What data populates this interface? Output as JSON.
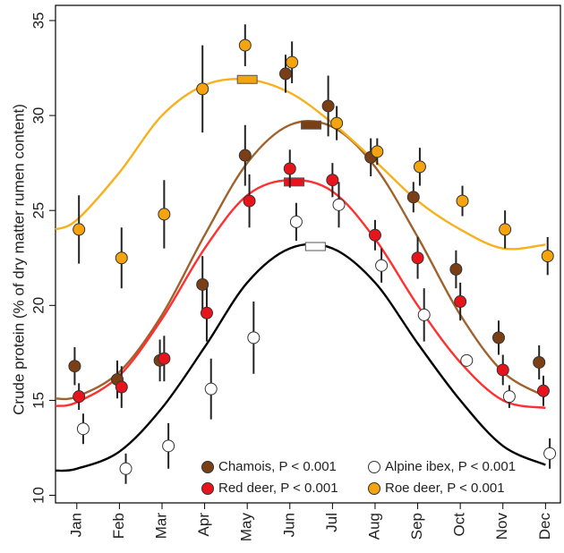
{
  "chart_data": {
    "type": "scatter",
    "ylabel": "Crude protein (% of dry matter rumen content)",
    "xlim": [
      0.5,
      12.35
    ],
    "ylim": [
      9.6,
      35.8
    ],
    "xticks": [
      {
        "value": 1,
        "label": "Jan"
      },
      {
        "value": 2,
        "label": "Feb"
      },
      {
        "value": 3,
        "label": "Mar"
      },
      {
        "value": 4,
        "label": "Apr"
      },
      {
        "value": 5,
        "label": "May"
      },
      {
        "value": 6,
        "label": "Jun"
      },
      {
        "value": 7,
        "label": "Jul"
      },
      {
        "value": 8,
        "label": "Aug"
      },
      {
        "value": 9,
        "label": "Sep"
      },
      {
        "value": 10,
        "label": "Oct"
      },
      {
        "value": 11,
        "label": "Nov"
      },
      {
        "value": 12,
        "label": "Dec"
      }
    ],
    "yticks": [
      10,
      15,
      20,
      25,
      30,
      35
    ],
    "curve_x": [
      0.5,
      1,
      2,
      3,
      4,
      5,
      6,
      7,
      8,
      9,
      10,
      11,
      12
    ],
    "series": [
      {
        "name": "Chamois, P < 0.001",
        "color": "#7b3f16",
        "line_color": "#a0622d",
        "x": [
          0.95,
          1.95,
          2.95,
          3.95,
          4.95,
          5.9,
          6.9,
          7.9,
          8.9,
          9.9,
          10.9,
          11.85
        ],
        "values": [
          16.8,
          16.1,
          17.1,
          21.1,
          27.9,
          32.2,
          30.5,
          27.8,
          25.7,
          21.9,
          18.3,
          17.0
        ],
        "errors": [
          1.0,
          1.0,
          1.1,
          1.5,
          1.6,
          1.0,
          1.6,
          1.0,
          0.8,
          1.0,
          0.9,
          0.9
        ],
        "curve": [
          15.1,
          15.2,
          16.5,
          19.5,
          23.7,
          27.5,
          29.5,
          29.4,
          27.3,
          23.6,
          19.5,
          16.5,
          15.2
        ],
        "peak": [
          6.5,
          29.5
        ]
      },
      {
        "name": "Red deer, P < 0.001",
        "color": "#e8141b",
        "line_color": "#ff3030",
        "x": [
          1.05,
          2.05,
          3.05,
          4.05,
          5.05,
          6.0,
          7.0,
          8.0,
          9.0,
          10.0,
          11.0,
          11.95
        ],
        "values": [
          15.2,
          15.7,
          17.2,
          19.6,
          25.5,
          27.2,
          26.6,
          23.7,
          22.5,
          20.2,
          16.6,
          15.5
        ],
        "errors": [
          0.7,
          1.1,
          1.2,
          1.5,
          1.4,
          1.0,
          0.9,
          0.8,
          1.1,
          1.0,
          0.8,
          0.8
        ],
        "curve": [
          14.7,
          14.9,
          16.3,
          19.3,
          23.0,
          25.8,
          26.6,
          26.0,
          23.5,
          20.0,
          17.0,
          15.0,
          14.6
        ],
        "peak": [
          6.1,
          26.5
        ]
      },
      {
        "name": "Alpine ibex, P < 0.001",
        "color": "#ffffff",
        "line_color": "#000000",
        "x": [
          1.15,
          2.15,
          3.15,
          4.15,
          5.15,
          6.15,
          7.15,
          8.15,
          9.15,
          10.15,
          11.15,
          12.1
        ],
        "values": [
          13.5,
          11.4,
          12.6,
          15.6,
          18.3,
          24.4,
          25.3,
          22.1,
          19.5,
          17.1,
          15.2,
          12.2
        ],
        "errors": [
          0.8,
          0.8,
          1.2,
          1.6,
          1.9,
          1.0,
          1.2,
          0.9,
          1.4,
          0.0,
          0.6,
          0.8
        ],
        "curve": [
          11.3,
          11.4,
          12.3,
          14.6,
          17.8,
          21.2,
          23.0,
          23.0,
          21.2,
          18.0,
          15.0,
          12.6,
          11.6
        ],
        "peak": [
          6.6,
          23.1
        ]
      },
      {
        "name": "Roe deer, P < 0.001",
        "color": "#f5a30f",
        "line_color": "#f7b01e",
        "x": [
          1.05,
          2.05,
          3.05,
          3.95,
          4.95,
          6.05,
          7.1,
          8.05,
          9.05,
          10.05,
          11.05,
          12.05
        ],
        "values": [
          24.0,
          22.5,
          24.8,
          31.4,
          33.7,
          32.8,
          29.6,
          28.1,
          27.3,
          25.5,
          24.0,
          22.6
        ],
        "errors": [
          1.8,
          1.6,
          1.8,
          2.3,
          1.1,
          1.1,
          0.9,
          0.7,
          1.0,
          0.8,
          1.0,
          1.0
        ],
        "curve": [
          24.0,
          24.5,
          27.0,
          30.0,
          31.6,
          31.9,
          31.2,
          29.6,
          27.6,
          25.5,
          24.0,
          23.0,
          23.2
        ],
        "peak": [
          5.0,
          31.9
        ]
      }
    ]
  }
}
